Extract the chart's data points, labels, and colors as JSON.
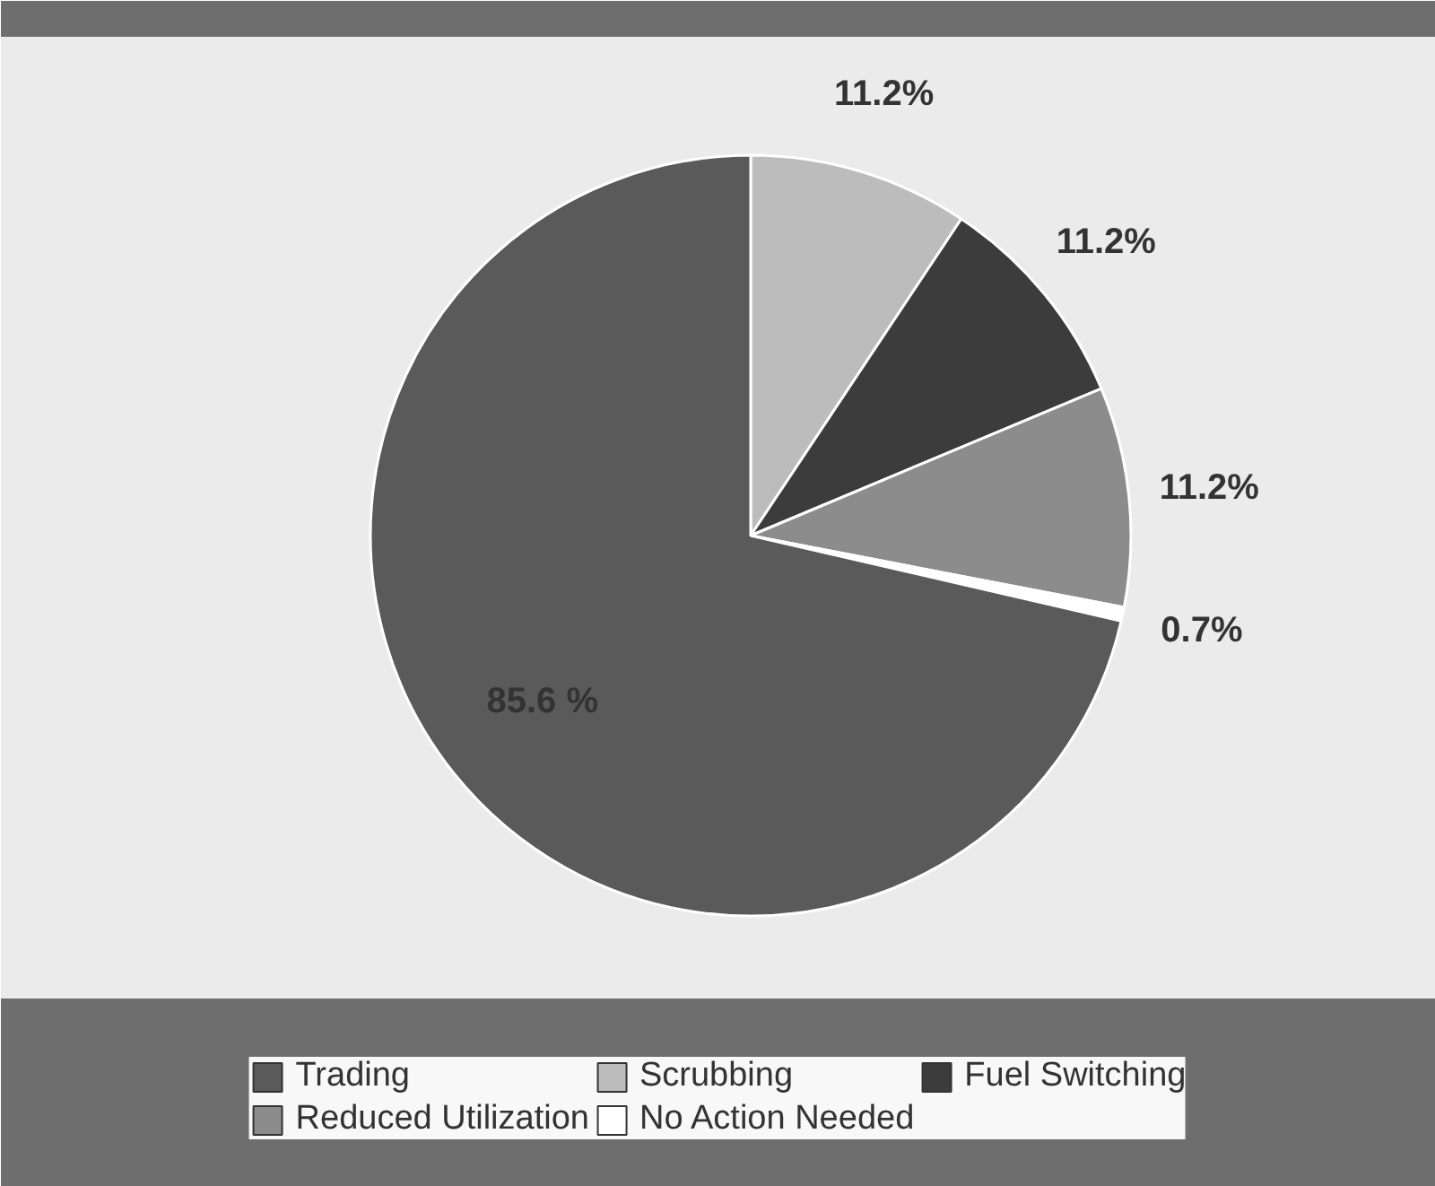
{
  "chart_data": {
    "type": "pie",
    "categories": [
      "Scrubbing",
      "Fuel Switching",
      "Reduced Utilization",
      "No Action Needed",
      "Trading"
    ],
    "values": [
      11.2,
      11.2,
      11.2,
      0.7,
      85.6
    ],
    "colors": [
      "#bcbcbc",
      "#3c3c3c",
      "#8c8c8c",
      "#ffffff",
      "#5a5a5a"
    ],
    "value_labels": [
      "11.2%",
      "11.2%",
      "11.2%",
      "0.7%",
      "85.6 %"
    ],
    "legend": "bottom"
  }
}
